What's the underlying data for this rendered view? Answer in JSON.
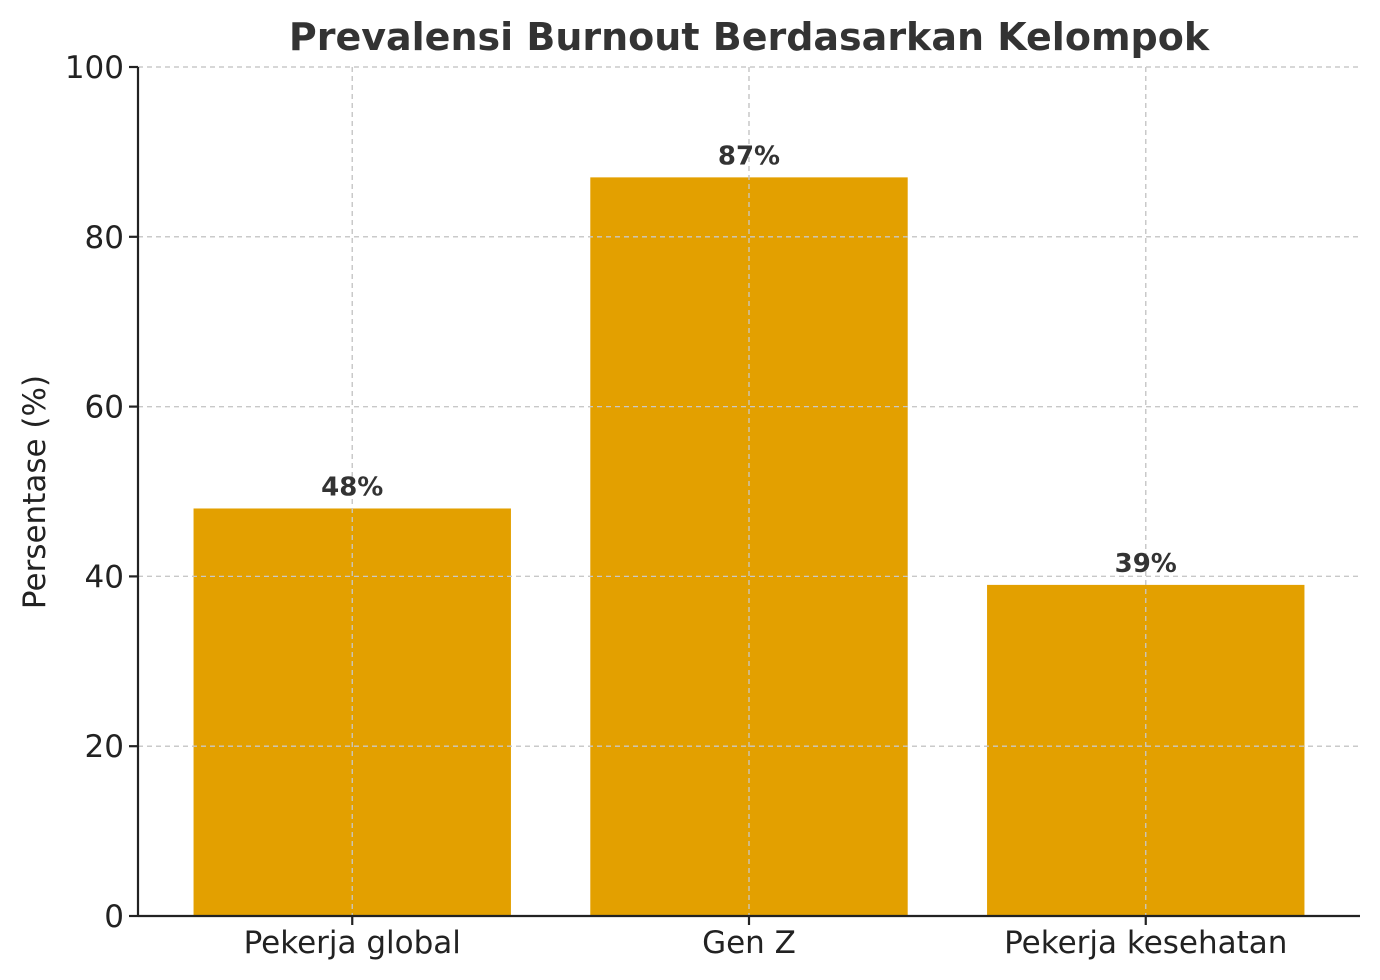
{
  "chart_data": {
    "type": "bar",
    "title": "Prevalensi Burnout Berdasarkan Kelompok",
    "xlabel": "",
    "ylabel": "Persentase (%)",
    "categories": [
      "Pekerja global",
      "Gen Z",
      "Pekerja kesehatan"
    ],
    "values": [
      48,
      87,
      39
    ],
    "data_labels": [
      "48%",
      "87%",
      "39%"
    ],
    "ylim": [
      0,
      100
    ],
    "yticks": [
      0,
      20,
      40,
      60,
      80,
      100
    ],
    "grid": true,
    "bar_color": "#e3a000"
  }
}
